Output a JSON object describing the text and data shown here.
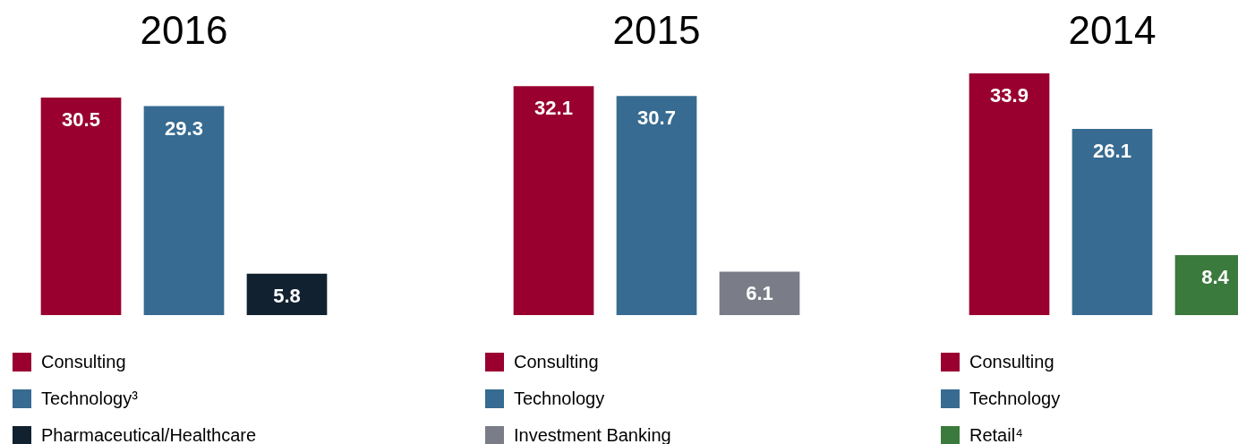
{
  "chart_data": [
    {
      "type": "bar",
      "title": "2016",
      "categories": [
        null
      ],
      "tick_labels": false,
      "grid": false,
      "data_labels": true,
      "legend": "bottom",
      "series": [
        {
          "name": "Consulting",
          "color": "#990030",
          "values": [
            30.5
          ]
        },
        {
          "name": "Technology³",
          "color": "#376b91",
          "values": [
            29.3
          ]
        },
        {
          "name": "Pharmaceutical/Healthcare",
          "color": "#11212f",
          "values": [
            5.8
          ]
        }
      ]
    },
    {
      "type": "bar",
      "title": "2015",
      "categories": [
        null
      ],
      "tick_labels": false,
      "grid": false,
      "data_labels": true,
      "legend": "bottom",
      "series": [
        {
          "name": "Consulting",
          "color": "#990030",
          "values": [
            32.1
          ]
        },
        {
          "name": "Technology",
          "color": "#376b91",
          "values": [
            30.7
          ]
        },
        {
          "name": "Investment Banking",
          "color": "#7a7d87",
          "values": [
            6.1
          ]
        }
      ]
    },
    {
      "type": "bar",
      "title": "2014",
      "categories": [
        null
      ],
      "tick_labels": false,
      "grid": false,
      "data_labels": true,
      "legend": "bottom",
      "series": [
        {
          "name": "Consulting",
          "color": "#990030",
          "values": [
            33.9
          ]
        },
        {
          "name": "Technology",
          "color": "#376b91",
          "values": [
            26.1
          ]
        },
        {
          "name": "Retail⁴",
          "color": "#3a7a3c",
          "values": [
            8.4
          ]
        }
      ]
    }
  ]
}
